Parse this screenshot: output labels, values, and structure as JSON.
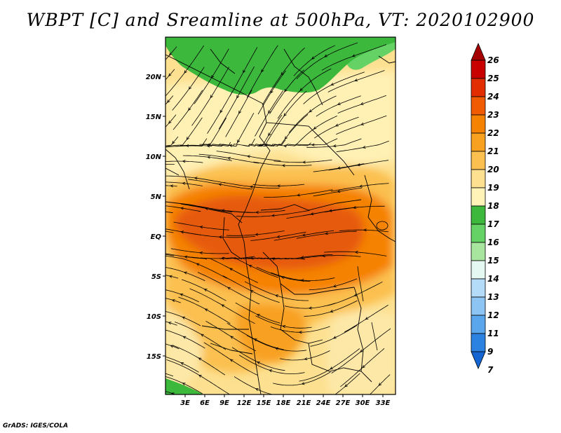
{
  "title": "WBPT [C] and Sreamline at 500hPa, VT: 2020102900",
  "credit": "GrADS: IGES/COLA",
  "map": {
    "lat_labels": [
      "20N",
      "15N",
      "10N",
      "5N",
      "EQ",
      "5S",
      "10S",
      "15S"
    ],
    "lon_labels": [
      "3E",
      "6E",
      "9E",
      "12E",
      "15E",
      "18E",
      "21E",
      "24E",
      "27E",
      "30E",
      "33E"
    ]
  },
  "colorbar": {
    "labels": [
      "26",
      "25",
      "24",
      "23",
      "22",
      "21",
      "20",
      "19",
      "18",
      "17",
      "16",
      "15",
      "14",
      "13",
      "12",
      "11",
      "9",
      "7"
    ],
    "colors": [
      "#a50000",
      "#c80000",
      "#e12d00",
      "#f05a00",
      "#f58200",
      "#f8a020",
      "#fbc050",
      "#fde090",
      "#fff3b8",
      "#3cb83c",
      "#64d264",
      "#a8e6a0",
      "#e6f8f2",
      "#b4dcf8",
      "#8cc4f4",
      "#5aa6ec",
      "#2c82e0",
      "#1464d2"
    ]
  }
}
